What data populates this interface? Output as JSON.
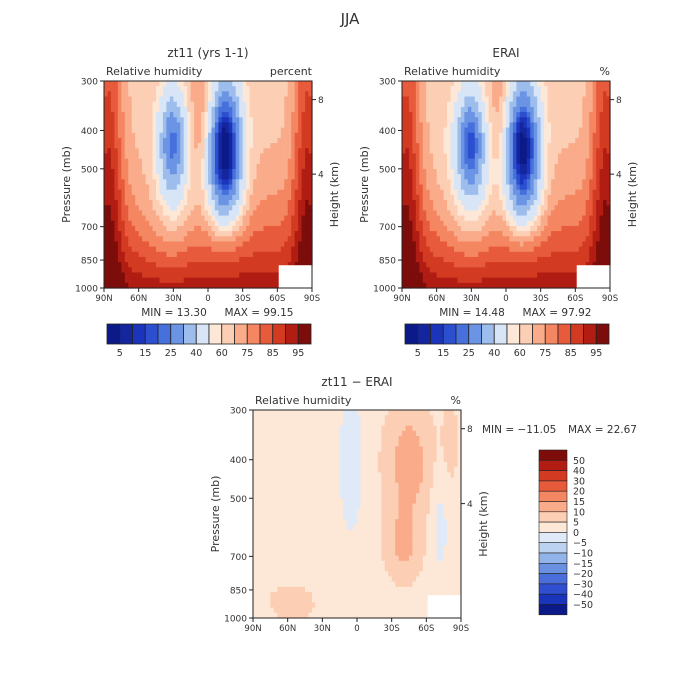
{
  "figure": {
    "title": "JJA",
    "ylabel_left": "Pressure (mb)",
    "ylabel_right": "Height (km)",
    "pressure_levels": [
      300,
      400,
      500,
      700,
      850,
      1000
    ],
    "height_ticks": [
      8,
      4
    ],
    "x_ticks": [
      "90N",
      "60N",
      "30N",
      "0",
      "30S",
      "60S",
      "90S"
    ]
  },
  "chart_data": [
    {
      "type": "heatmap",
      "title": "zt11 (yrs 1-1)",
      "variable": "Relative humidity",
      "units": "percent",
      "min_text": "MIN =   13.30",
      "max_text": "MAX =   99.15",
      "min": 13.3,
      "max": 99.15,
      "colorbar_levels": [
        5,
        10,
        15,
        20,
        25,
        30,
        40,
        50,
        60,
        65,
        70,
        75,
        80,
        85,
        90,
        95
      ],
      "colorbar_labels": [
        "5",
        "15",
        "25",
        "40",
        "60",
        "75",
        "85",
        "95"
      ],
      "ylim": [
        300,
        1000
      ],
      "xlim": [
        "90N",
        "90S"
      ]
    },
    {
      "type": "heatmap",
      "title": "ERAI",
      "variable": "Relative humidity",
      "units": "%",
      "min_text": "MIN =   14.48",
      "max_text": "MAX =   97.92",
      "min": 14.48,
      "max": 97.92,
      "colorbar_levels": [
        5,
        10,
        15,
        20,
        25,
        30,
        40,
        50,
        60,
        65,
        70,
        75,
        80,
        85,
        90,
        95
      ],
      "colorbar_labels": [
        "5",
        "15",
        "25",
        "40",
        "60",
        "75",
        "85",
        "95"
      ],
      "ylim": [
        300,
        1000
      ],
      "xlim": [
        "90N",
        "90S"
      ]
    },
    {
      "type": "heatmap",
      "title": "zt11 − ERAI",
      "variable": "Relative humidity",
      "units": "%",
      "min_text": "MIN = −11.05",
      "max_text": "MAX =   22.67",
      "min": -11.05,
      "max": 22.67,
      "colorbar_labels": [
        "50",
        "40",
        "30",
        "20",
        "15",
        "10",
        "5",
        "0",
        "−5",
        "−10",
        "−15",
        "−20",
        "−30",
        "−40",
        "−50"
      ],
      "ylim": [
        300,
        1000
      ],
      "xlim": [
        "90N",
        "90S"
      ]
    }
  ]
}
